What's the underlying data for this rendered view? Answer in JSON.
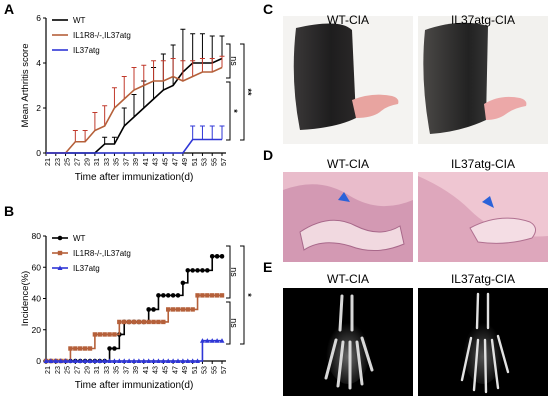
{
  "figure": {
    "panels": {
      "A": "A",
      "B": "B",
      "C": "C",
      "D": "D",
      "E": "E"
    },
    "panel_C": {
      "left_caption": "WT-CIA",
      "right_caption": "IL37atg-CIA"
    },
    "panel_D": {
      "left_caption": "WT-CIA",
      "right_caption": "IL37atg-CIA"
    },
    "panel_E": {
      "left_caption": "WT-CIA",
      "right_caption": "IL37atg-CIA"
    },
    "colors": {
      "wt": "#000000",
      "ko": "#b5603a",
      "atg": "#2f36d6",
      "err_ko": "#c0392b"
    }
  },
  "chart_data": [
    {
      "type": "line",
      "panel": "A",
      "xlabel": "Time after immunization(d)",
      "ylabel": "Mean Arthritis score",
      "x": [
        21,
        23,
        25,
        27,
        29,
        31,
        33,
        35,
        37,
        39,
        41,
        43,
        45,
        47,
        49,
        51,
        53,
        55,
        57
      ],
      "x_tick_labels": [
        "21",
        "23",
        "25",
        "27",
        "29",
        "31",
        "33",
        "35",
        "37",
        "39",
        "41",
        "43",
        "45",
        "47",
        "49",
        "51",
        "53",
        "55",
        "57"
      ],
      "ylim": [
        0,
        6
      ],
      "y_ticks": [
        0,
        2,
        4,
        6
      ],
      "legend": "top-left",
      "series": [
        {
          "name": "WT",
          "color": "#000000",
          "values": [
            0,
            0,
            0,
            0,
            0,
            0,
            0.4,
            0.4,
            1.2,
            1.6,
            2.0,
            2.4,
            2.8,
            3.0,
            3.6,
            4.0,
            4.0,
            4.0,
            4.2
          ],
          "errors": [
            0,
            0,
            0,
            0,
            0,
            0,
            0.3,
            0.3,
            0.8,
            1.0,
            1.2,
            1.4,
            1.6,
            1.8,
            1.9,
            1.3,
            1.3,
            1.2,
            1.0
          ]
        },
        {
          "name": "IL1R8-/-,IL37atg",
          "color": "#b5603a",
          "values": [
            0,
            0,
            0,
            0.5,
            0.5,
            1.0,
            1.2,
            2.0,
            2.4,
            2.8,
            3.0,
            3.2,
            3.2,
            3.4,
            3.2,
            3.4,
            3.6,
            3.6,
            3.8
          ],
          "errors": [
            0,
            0,
            0,
            0.5,
            0.5,
            0.8,
            0.9,
            0.9,
            1.0,
            1.0,
            0.9,
            0.9,
            0.9,
            0.8,
            0.9,
            0.7,
            0.6,
            0.6,
            0.5
          ]
        },
        {
          "name": "IL37atg",
          "color": "#2f36d6",
          "values": [
            0,
            0,
            0,
            0,
            0,
            0,
            0,
            0,
            0,
            0,
            0,
            0,
            0,
            0,
            0,
            0.6,
            0.6,
            0.6,
            0.6
          ],
          "errors": [
            0,
            0,
            0,
            0,
            0,
            0,
            0,
            0,
            0,
            0,
            0,
            0,
            0,
            0,
            0,
            0.6,
            0.6,
            0.6,
            0.6
          ]
        }
      ],
      "annotations": [
        {
          "text": "ns",
          "between": [
            "WT",
            "IL1R8-/-,IL37atg"
          ]
        },
        {
          "text": "*",
          "between": [
            "IL1R8-/-,IL37atg",
            "IL37atg"
          ]
        },
        {
          "text": "**",
          "between": [
            "WT",
            "IL37atg"
          ]
        }
      ]
    },
    {
      "type": "line",
      "panel": "B",
      "xlabel": "Time after immunization(d)",
      "ylabel": "Incidence(%)",
      "x": [
        21,
        22,
        23,
        24,
        25,
        26,
        27,
        28,
        29,
        30,
        31,
        32,
        33,
        34,
        35,
        36,
        37,
        38,
        39,
        40,
        41,
        42,
        43,
        44,
        45,
        46,
        47,
        48,
        49,
        50,
        51,
        52,
        53,
        54,
        55,
        56,
        57
      ],
      "x_tick_labels": [
        "21",
        "23",
        "25",
        "27",
        "29",
        "31",
        "33",
        "35",
        "37",
        "39",
        "41",
        "43",
        "45",
        "47",
        "49",
        "51",
        "53",
        "55",
        "57"
      ],
      "ylim": [
        0,
        80
      ],
      "y_ticks": [
        0,
        20,
        40,
        60,
        80
      ],
      "legend": "top-left",
      "series": [
        {
          "name": "WT",
          "color": "#000000",
          "values": [
            0,
            0,
            0,
            0,
            0,
            0,
            0,
            0,
            0,
            0,
            0,
            0,
            0,
            8,
            8,
            17,
            25,
            25,
            25,
            25,
            25,
            33,
            33,
            42,
            42,
            42,
            42,
            42,
            50,
            58,
            58,
            58,
            58,
            58,
            67,
            67,
            67
          ]
        },
        {
          "name": "IL1R8-/-,IL37atg",
          "color": "#b5603a",
          "values": [
            0,
            0,
            0,
            0,
            0,
            8,
            8,
            8,
            8,
            8,
            17,
            17,
            17,
            17,
            17,
            25,
            25,
            25,
            25,
            25,
            25,
            25,
            25,
            25,
            25,
            33,
            33,
            33,
            33,
            33,
            33,
            42,
            42,
            42,
            42,
            42,
            42
          ]
        },
        {
          "name": "IL37atg",
          "color": "#2f36d6",
          "values": [
            0,
            0,
            0,
            0,
            0,
            0,
            0,
            0,
            0,
            0,
            0,
            0,
            0,
            0,
            0,
            0,
            0,
            0,
            0,
            0,
            0,
            0,
            0,
            0,
            0,
            0,
            0,
            0,
            0,
            0,
            0,
            0,
            13,
            13,
            13,
            13,
            13
          ]
        }
      ],
      "annotations": [
        {
          "text": "ns",
          "between": [
            "WT",
            "IL1R8-/-,IL37atg"
          ]
        },
        {
          "text": "ns",
          "between": [
            "IL1R8-/-,IL37atg",
            "IL37atg"
          ]
        },
        {
          "text": "*",
          "between": [
            "WT",
            "IL37atg"
          ]
        }
      ]
    }
  ]
}
